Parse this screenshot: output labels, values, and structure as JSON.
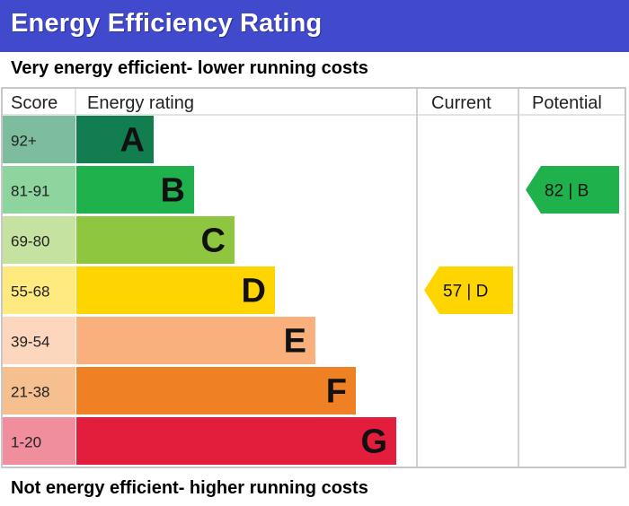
{
  "header": {
    "title": "Energy Efficiency Rating",
    "top_note": "Very energy efficient- lower running costs",
    "bottom_note": "Not energy efficient- higher running costs"
  },
  "columns": {
    "score": "Score",
    "rating": "Energy rating",
    "current": "Current",
    "potential": "Potential"
  },
  "chart_data": {
    "type": "bar",
    "title": "Energy Efficiency Rating",
    "bands": [
      {
        "letter": "A",
        "range": "92+",
        "color": "#127d4f",
        "score_bg": "#7ebc9e"
      },
      {
        "letter": "B",
        "range": "81-91",
        "color": "#1fb14c",
        "score_bg": "#8dd49f"
      },
      {
        "letter": "C",
        "range": "69-80",
        "color": "#8ec640",
        "score_bg": "#c6e2a0"
      },
      {
        "letter": "D",
        "range": "55-68",
        "color": "#ffd500",
        "score_bg": "#ffea80"
      },
      {
        "letter": "E",
        "range": "39-54",
        "color": "#f9b07c",
        "score_bg": "#fcd7bd"
      },
      {
        "letter": "F",
        "range": "21-38",
        "color": "#ef8023",
        "score_bg": "#f6bf90"
      },
      {
        "letter": "G",
        "range": "1-20",
        "color": "#e31d3c",
        "score_bg": "#f08e9d"
      }
    ],
    "current": {
      "value": 57,
      "letter": "D",
      "label": "57 | D",
      "color": "#ffd500"
    },
    "potential": {
      "value": 82,
      "letter": "B",
      "label": "82 | B",
      "color": "#1fb14c"
    }
  }
}
